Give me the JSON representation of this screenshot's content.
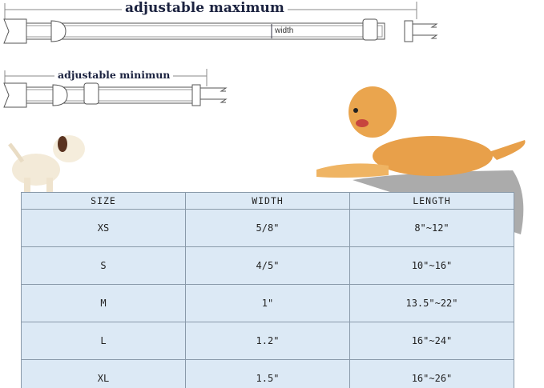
{
  "diagram": {
    "max_label": "adjustable maximum",
    "min_label": "adjustable minimun",
    "width_label": "width"
  },
  "size_table": {
    "headers": [
      "SIZE",
      "WIDTH",
      "LENGTH"
    ],
    "rows": [
      [
        "XS",
        "5/8\"",
        "8\"~12\""
      ],
      [
        "S",
        "4/5\"",
        "10\"~16\""
      ],
      [
        "M",
        "1\"",
        "13.5\"~22\""
      ],
      [
        "L",
        "1.2\"",
        "16\"~24\""
      ],
      [
        "XL",
        "1.5\"",
        "16\"~26\""
      ]
    ]
  },
  "colors": {
    "table_bg": "#dce9f5",
    "label_text": "#1c2340",
    "dog_fur": "#e8a04a"
  }
}
